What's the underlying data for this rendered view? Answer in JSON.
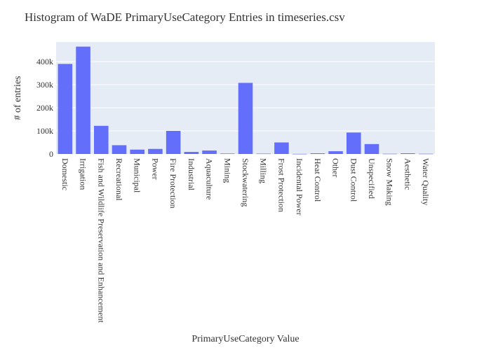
{
  "chart_data": {
    "type": "bar",
    "title": "Histogram of WaDE PrimaryUseCategory Entries in timeseries.csv",
    "xlabel": "PrimaryUseCategory Value",
    "ylabel": "# of entries",
    "categories": [
      "Domestic",
      "Irrigation",
      "Fish and Wildlife Preservation and Enhancement",
      "Recreational",
      "Municipal",
      "Power",
      "Fire Protection",
      "Industrial",
      "Aquaculture",
      "Mining",
      "Stockwatering",
      "Milling",
      "Frost Protection",
      "Incidental Power",
      "Heat Control",
      "Other",
      "Dust Control",
      "Unspecified",
      "Snow Making",
      "Aesthetic",
      "Water Quality"
    ],
    "values": [
      390000,
      465000,
      122000,
      38000,
      19000,
      22000,
      100000,
      9000,
      15000,
      2000,
      308000,
      1500,
      50000,
      500,
      3000,
      12000,
      93000,
      43000,
      1000,
      3000,
      1000
    ],
    "ylim": [
      0,
      485000
    ],
    "yticks": [
      0,
      100000,
      200000,
      300000,
      400000
    ],
    "ytick_labels": [
      "0",
      "100k",
      "200k",
      "300k",
      "400k"
    ],
    "grid": true,
    "bar_color": "#636efa",
    "plot_bg": "#e5ecf6"
  }
}
